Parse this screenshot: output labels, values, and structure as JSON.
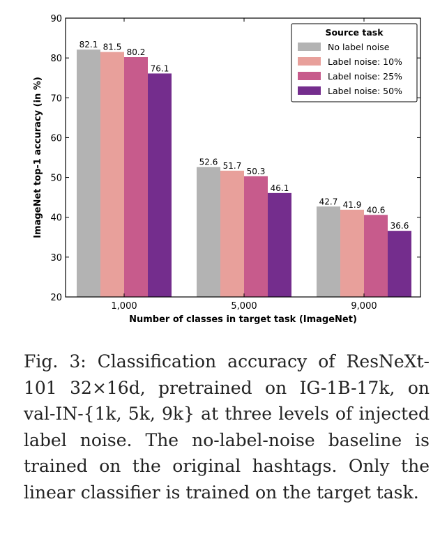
{
  "chart_data": {
    "type": "bar",
    "ylabel": "ImageNet top-1 accuracy (in %)",
    "xlabel": "Number of classes in target task (ImageNet)",
    "ylim": [
      20,
      90
    ],
    "yticks": [
      20,
      30,
      40,
      50,
      60,
      70,
      80,
      90
    ],
    "categories": [
      "1,000",
      "5,000",
      "9,000"
    ],
    "legend": {
      "title": "Source task",
      "placement": "top-right"
    },
    "grid": false,
    "series": [
      {
        "name": "No label noise",
        "color": "#b3b3b3",
        "values": [
          82.1,
          52.6,
          42.7
        ],
        "labels": [
          "82.1",
          "52.6",
          "42.7"
        ]
      },
      {
        "name": "Label noise: 10%",
        "color": "#e8a09b",
        "values": [
          81.5,
          51.7,
          41.9
        ],
        "labels": [
          "81.5",
          "51.7",
          "41.9"
        ]
      },
      {
        "name": "Label noise: 25%",
        "color": "#c75b8c",
        "values": [
          80.2,
          50.3,
          40.6
        ],
        "labels": [
          "80.2",
          "50.3",
          "40.6"
        ]
      },
      {
        "name": "Label noise: 50%",
        "color": "#742d8d",
        "values": [
          76.1,
          46.1,
          36.6
        ],
        "labels": [
          "76.1",
          "46.1",
          "36.6"
        ]
      }
    ]
  },
  "caption": "Fig. 3: Classification accuracy of ResNeXt-101 32×16d, pretrained on IG-1B-17k, on val-IN-{1k, 5k, 9k} at three levels of injected label noise. The no-label-noise baseline is trained on the original hashtags. Only the linear classifier is trained on the target task."
}
